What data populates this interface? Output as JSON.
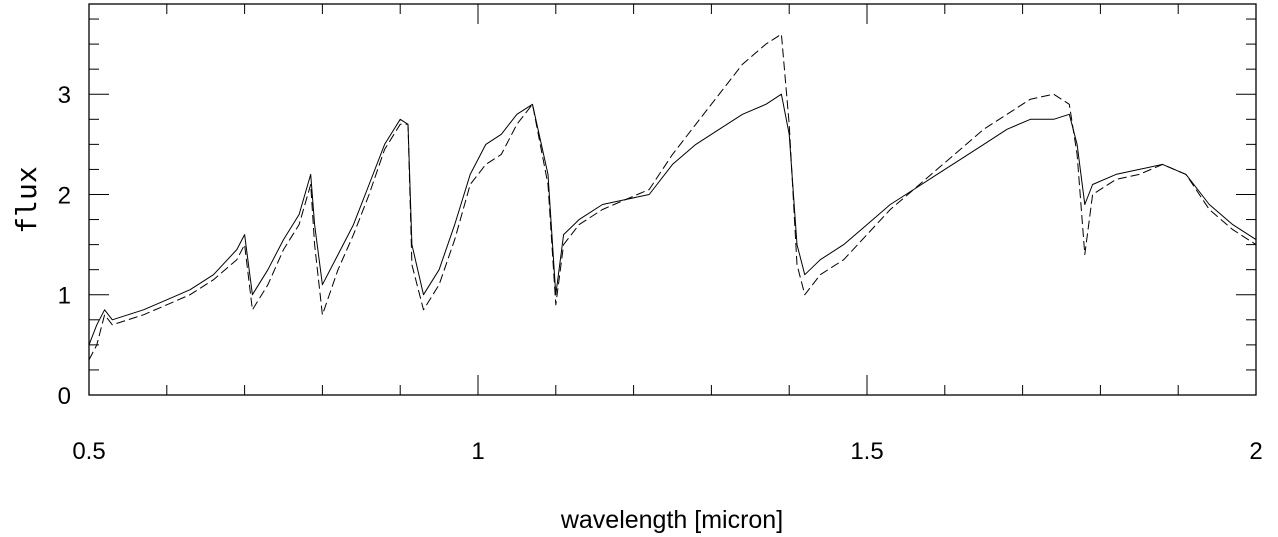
{
  "chart_data": {
    "type": "line",
    "xlabel": "wavelength [micron]",
    "ylabel": "flux",
    "xlim": [
      0.5,
      2.0
    ],
    "ylim": [
      0,
      3.9
    ],
    "x_major_ticks": [
      0.5,
      1.0,
      1.5,
      2.0
    ],
    "x_tick_labels": [
      "0.5",
      "1",
      "1.5",
      "2"
    ],
    "y_major_ticks": [
      0,
      1,
      2,
      3
    ],
    "y_tick_labels": [
      "0",
      "1",
      "2",
      "3"
    ],
    "x_minor_step": 0.1,
    "y_minor_step": 0.25,
    "grid": false,
    "legend": "none",
    "series": [
      {
        "style": "solid",
        "x": [
          0.5,
          0.51,
          0.52,
          0.53,
          0.55,
          0.57,
          0.6,
          0.63,
          0.66,
          0.69,
          0.7,
          0.71,
          0.73,
          0.75,
          0.77,
          0.785,
          0.79,
          0.8,
          0.82,
          0.84,
          0.86,
          0.88,
          0.9,
          0.91,
          0.915,
          0.93,
          0.95,
          0.97,
          0.99,
          1.01,
          1.03,
          1.05,
          1.07,
          1.09,
          1.1,
          1.11,
          1.13,
          1.16,
          1.19,
          1.22,
          1.25,
          1.28,
          1.31,
          1.34,
          1.37,
          1.39,
          1.4,
          1.41,
          1.42,
          1.44,
          1.47,
          1.5,
          1.53,
          1.56,
          1.59,
          1.62,
          1.65,
          1.68,
          1.71,
          1.74,
          1.76,
          1.77,
          1.78,
          1.79,
          1.82,
          1.85,
          1.88,
          1.91,
          1.94,
          1.97,
          2.0
        ],
        "y": [
          0.5,
          0.7,
          0.85,
          0.75,
          0.8,
          0.85,
          0.95,
          1.05,
          1.2,
          1.45,
          1.6,
          1.0,
          1.25,
          1.55,
          1.8,
          2.2,
          1.7,
          1.1,
          1.4,
          1.7,
          2.1,
          2.5,
          2.75,
          2.7,
          1.5,
          1.0,
          1.25,
          1.7,
          2.2,
          2.5,
          2.6,
          2.8,
          2.9,
          2.2,
          1.0,
          1.6,
          1.75,
          1.9,
          1.95,
          2.0,
          2.3,
          2.5,
          2.65,
          2.8,
          2.9,
          3.0,
          2.6,
          1.5,
          1.2,
          1.35,
          1.5,
          1.7,
          1.9,
          2.05,
          2.2,
          2.35,
          2.5,
          2.65,
          2.75,
          2.75,
          2.8,
          2.5,
          1.9,
          2.1,
          2.2,
          2.25,
          2.3,
          2.2,
          1.9,
          1.7,
          1.55
        ]
      },
      {
        "style": "dashed",
        "x": [
          0.5,
          0.51,
          0.52,
          0.53,
          0.55,
          0.57,
          0.6,
          0.63,
          0.66,
          0.69,
          0.7,
          0.71,
          0.73,
          0.75,
          0.77,
          0.785,
          0.79,
          0.8,
          0.82,
          0.84,
          0.86,
          0.88,
          0.9,
          0.91,
          0.915,
          0.93,
          0.95,
          0.97,
          0.99,
          1.01,
          1.03,
          1.05,
          1.07,
          1.09,
          1.1,
          1.11,
          1.13,
          1.16,
          1.19,
          1.22,
          1.25,
          1.28,
          1.31,
          1.34,
          1.37,
          1.39,
          1.4,
          1.41,
          1.42,
          1.44,
          1.47,
          1.5,
          1.53,
          1.56,
          1.59,
          1.62,
          1.65,
          1.68,
          1.71,
          1.74,
          1.76,
          1.77,
          1.78,
          1.79,
          1.82,
          1.85,
          1.88,
          1.91,
          1.94,
          1.97,
          2.0
        ],
        "y": [
          0.35,
          0.5,
          0.8,
          0.7,
          0.75,
          0.8,
          0.9,
          1.0,
          1.15,
          1.35,
          1.5,
          0.85,
          1.1,
          1.45,
          1.7,
          2.1,
          1.5,
          0.8,
          1.25,
          1.6,
          2.0,
          2.45,
          2.7,
          2.7,
          1.3,
          0.85,
          1.1,
          1.55,
          2.1,
          2.3,
          2.4,
          2.7,
          2.9,
          2.1,
          0.9,
          1.5,
          1.7,
          1.85,
          1.95,
          2.05,
          2.4,
          2.7,
          3.0,
          3.3,
          3.5,
          3.6,
          2.7,
          1.3,
          1.0,
          1.2,
          1.35,
          1.6,
          1.85,
          2.05,
          2.25,
          2.45,
          2.65,
          2.8,
          2.95,
          3.0,
          2.9,
          2.4,
          1.4,
          2.0,
          2.15,
          2.2,
          2.3,
          2.2,
          1.85,
          1.65,
          1.5
        ]
      }
    ]
  }
}
